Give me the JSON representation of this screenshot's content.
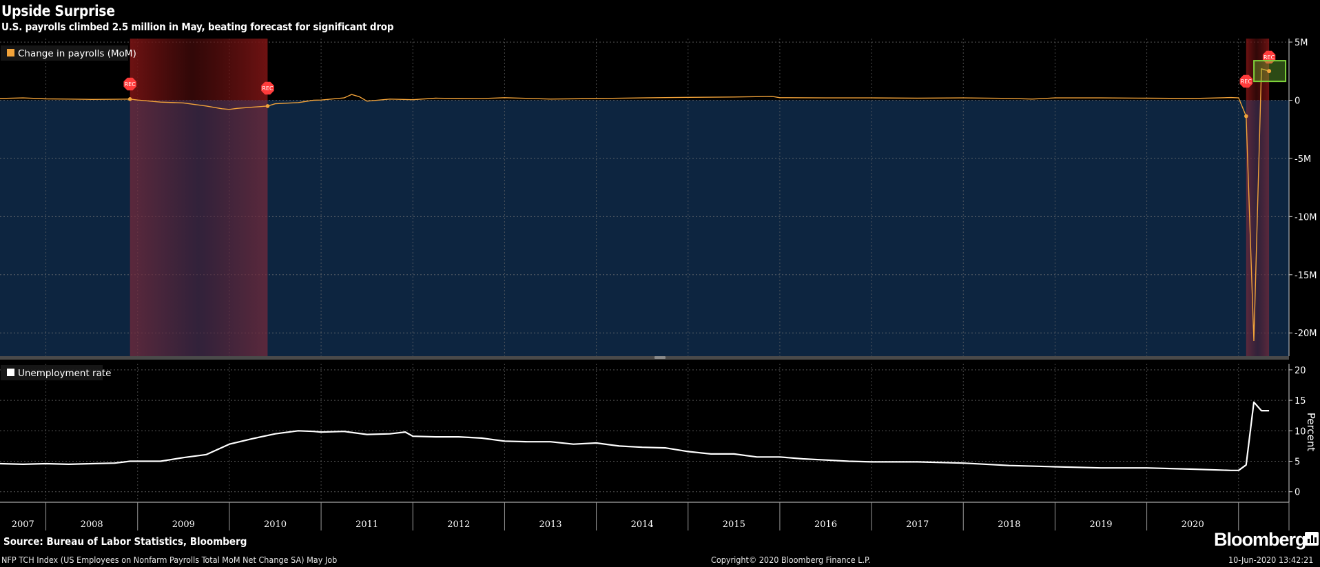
{
  "header": {
    "title": "Upside Surprise",
    "subtitle": "U.S. payrolls climbed 2.5 million in May, beating forecast for significant drop"
  },
  "footer": {
    "source": "Source: Bureau of Labor Statistics, Bloomberg",
    "brand": "Bloomberg",
    "index_note": "NFP TCH Index (US Employees on Nonfarm Payrolls Total MoM Net Change SA) May Job",
    "copyright": "Copyright© 2020 Bloomberg Finance L.P.",
    "timestamp": "10-Jun-2020 13:42:21"
  },
  "colors": {
    "background": "#000000",
    "payrolls_panel": "#0d2540",
    "payrolls_line": "#f2a33a",
    "unemployment_line": "#ffffff",
    "recession_shade": "#8b1a1a",
    "recession_marker": "#ff3b3b",
    "highlight_box": "#7fd43b"
  },
  "chart_data": [
    {
      "type": "area",
      "legend": "Change in payrolls (MoM)",
      "yunit": "M",
      "ylim": [
        -22,
        5.3
      ],
      "yticks": [
        5,
        0,
        -5,
        -10,
        -15,
        -20
      ],
      "ytick_labels": [
        "5M",
        "0",
        "-5M",
        "-10M",
        "-15M",
        "-20M"
      ],
      "grid": true,
      "legend_position": "top-left",
      "recessions": [
        {
          "start": 2007.917,
          "end": 2009.417,
          "label": "REC"
        },
        {
          "start": 2020.083,
          "end": 2020.333,
          "label": "REC"
        }
      ],
      "highlight": {
        "x": 2020.333,
        "y": 2.51
      },
      "series": [
        {
          "name": "Change in payrolls (MoM)",
          "x": [
            2006.25,
            2006.5,
            2006.75,
            2007.0,
            2007.25,
            2007.5,
            2007.75,
            2007.917,
            2008.0,
            2008.25,
            2008.5,
            2008.75,
            2008.917,
            2009.0,
            2009.083,
            2009.25,
            2009.417,
            2009.5,
            2009.75,
            2009.917,
            2010.0,
            2010.25,
            2010.333,
            2010.417,
            2010.5,
            2010.75,
            2011.0,
            2011.25,
            2011.5,
            2011.75,
            2012.0,
            2012.5,
            2013.0,
            2013.5,
            2014.0,
            2014.5,
            2014.917,
            2015.0,
            2015.5,
            2016.0,
            2016.5,
            2017.0,
            2017.5,
            2017.75,
            2018.0,
            2018.5,
            2019.0,
            2019.5,
            2019.917,
            2020.0,
            2020.083,
            2020.167,
            2020.25,
            2020.333
          ],
          "values": [
            0.19,
            0.15,
            0.2,
            0.12,
            0.1,
            0.07,
            0.08,
            0.1,
            0.02,
            -0.16,
            -0.23,
            -0.5,
            -0.73,
            -0.79,
            -0.7,
            -0.6,
            -0.5,
            -0.3,
            -0.2,
            0.0,
            0.02,
            0.2,
            0.5,
            0.3,
            -0.08,
            0.1,
            0.05,
            0.18,
            0.15,
            0.14,
            0.22,
            0.1,
            0.15,
            0.2,
            0.25,
            0.28,
            0.33,
            0.22,
            0.2,
            0.2,
            0.18,
            0.2,
            0.16,
            0.1,
            0.2,
            0.2,
            0.18,
            0.15,
            0.23,
            0.21,
            -1.37,
            -20.7,
            2.7,
            2.51
          ]
        }
      ]
    },
    {
      "type": "line",
      "legend": "Unemployment rate",
      "ylabel": "Percent",
      "ylim": [
        -1.5,
        21
      ],
      "yticks": [
        0,
        5,
        10,
        15,
        20
      ],
      "ytick_labels": [
        "0",
        "5",
        "10",
        "15",
        "20"
      ],
      "grid": true,
      "legend_position": "top-left",
      "x_categories": [
        "2007",
        "2008",
        "2009",
        "2010",
        "2011",
        "2012",
        "2013",
        "2014",
        "2015",
        "2016",
        "2017",
        "2018",
        "2019",
        "2020"
      ],
      "xlim": [
        2006.5,
        2020.55
      ],
      "series": [
        {
          "name": "Unemployment rate",
          "x": [
            2006.5,
            2006.75,
            2007.0,
            2007.25,
            2007.5,
            2007.75,
            2007.917,
            2008.0,
            2008.25,
            2008.5,
            2008.75,
            2009.0,
            2009.25,
            2009.5,
            2009.75,
            2009.917,
            2010.0,
            2010.25,
            2010.5,
            2010.75,
            2010.917,
            2011.0,
            2011.25,
            2011.5,
            2011.75,
            2012.0,
            2012.25,
            2012.5,
            2012.75,
            2013.0,
            2013.25,
            2013.5,
            2013.75,
            2014.0,
            2014.25,
            2014.5,
            2014.75,
            2015.0,
            2015.25,
            2015.5,
            2015.75,
            2016.0,
            2016.5,
            2017.0,
            2017.5,
            2018.0,
            2018.5,
            2019.0,
            2019.5,
            2019.917,
            2020.0,
            2020.083,
            2020.167,
            2020.25,
            2020.333
          ],
          "values": [
            4.6,
            4.5,
            4.6,
            4.5,
            4.6,
            4.7,
            5.0,
            5.0,
            5.0,
            5.6,
            6.1,
            7.8,
            8.7,
            9.5,
            10.0,
            9.9,
            9.8,
            9.9,
            9.4,
            9.5,
            9.8,
            9.1,
            9.0,
            9.0,
            8.8,
            8.3,
            8.2,
            8.2,
            7.8,
            8.0,
            7.5,
            7.3,
            7.2,
            6.6,
            6.2,
            6.2,
            5.7,
            5.7,
            5.4,
            5.2,
            5.0,
            4.9,
            4.9,
            4.7,
            4.3,
            4.1,
            3.9,
            3.9,
            3.7,
            3.5,
            3.5,
            4.4,
            14.7,
            13.3,
            13.3
          ]
        }
      ]
    }
  ]
}
